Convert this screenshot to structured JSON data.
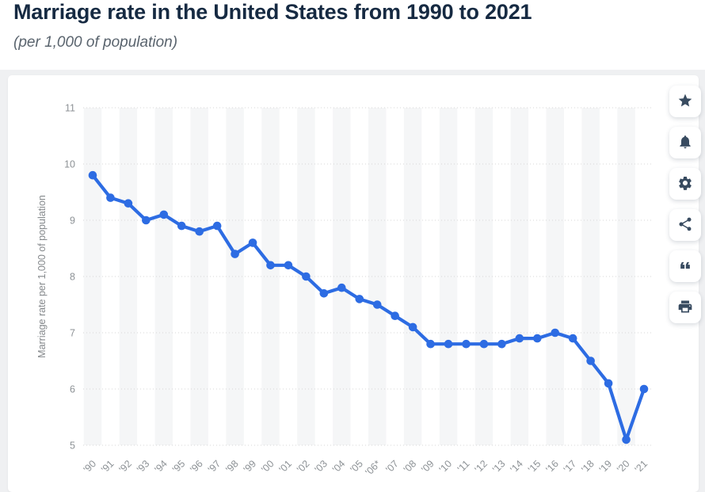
{
  "header": {
    "title": "Marriage rate in the United States from 1990 to 2021",
    "subtitle": "(per 1,000 of population)"
  },
  "toolbar": {
    "icons": [
      "star-icon",
      "bell-icon",
      "gear-icon",
      "share-icon",
      "quote-icon",
      "printer-icon"
    ]
  },
  "colors": {
    "line": "#2d6ce3",
    "title_text": "#162a42",
    "icon": "#384b60",
    "stripe": "#f5f6f7",
    "grid": "#d7d7d7",
    "tick_text": "#8d9296"
  },
  "chart_data": {
    "type": "line",
    "title": "Marriage rate in the United States from 1990 to 2021",
    "subtitle": "(per 1,000 of population)",
    "x": [
      "'90",
      "'91",
      "'92",
      "'93",
      "'94",
      "'95",
      "'96",
      "'97",
      "'98",
      "'99",
      "'00",
      "'01",
      "'02",
      "'03",
      "'04",
      "'05",
      "'06*",
      "'07",
      "'08",
      "'09",
      "'10",
      "'11",
      "'12",
      "'13",
      "'14",
      "'15",
      "'16",
      "'17",
      "'18",
      "'19",
      "'20",
      "'21"
    ],
    "series": [
      {
        "name": "Marriage rate per 1,000 of population",
        "values": [
          9.8,
          9.4,
          9.3,
          9.0,
          9.1,
          8.9,
          8.8,
          8.9,
          8.4,
          8.6,
          8.2,
          8.2,
          8.0,
          7.7,
          7.8,
          7.6,
          7.5,
          7.3,
          7.1,
          6.8,
          6.8,
          6.8,
          6.8,
          6.8,
          6.9,
          6.9,
          7.0,
          6.9,
          6.5,
          6.1,
          5.1,
          6.0
        ]
      }
    ],
    "xlabel": "",
    "ylabel": "Marriage rate per 1,000 of population",
    "yticks": [
      5,
      6,
      7,
      8,
      9,
      10,
      11
    ],
    "ylim": [
      5,
      11
    ],
    "grid": true,
    "legend": false,
    "line_color": "#2d6ce3",
    "stripe_color": "#f5f6f7",
    "grid_color": "#d7d7d7",
    "tick_color": "#8d9296"
  }
}
